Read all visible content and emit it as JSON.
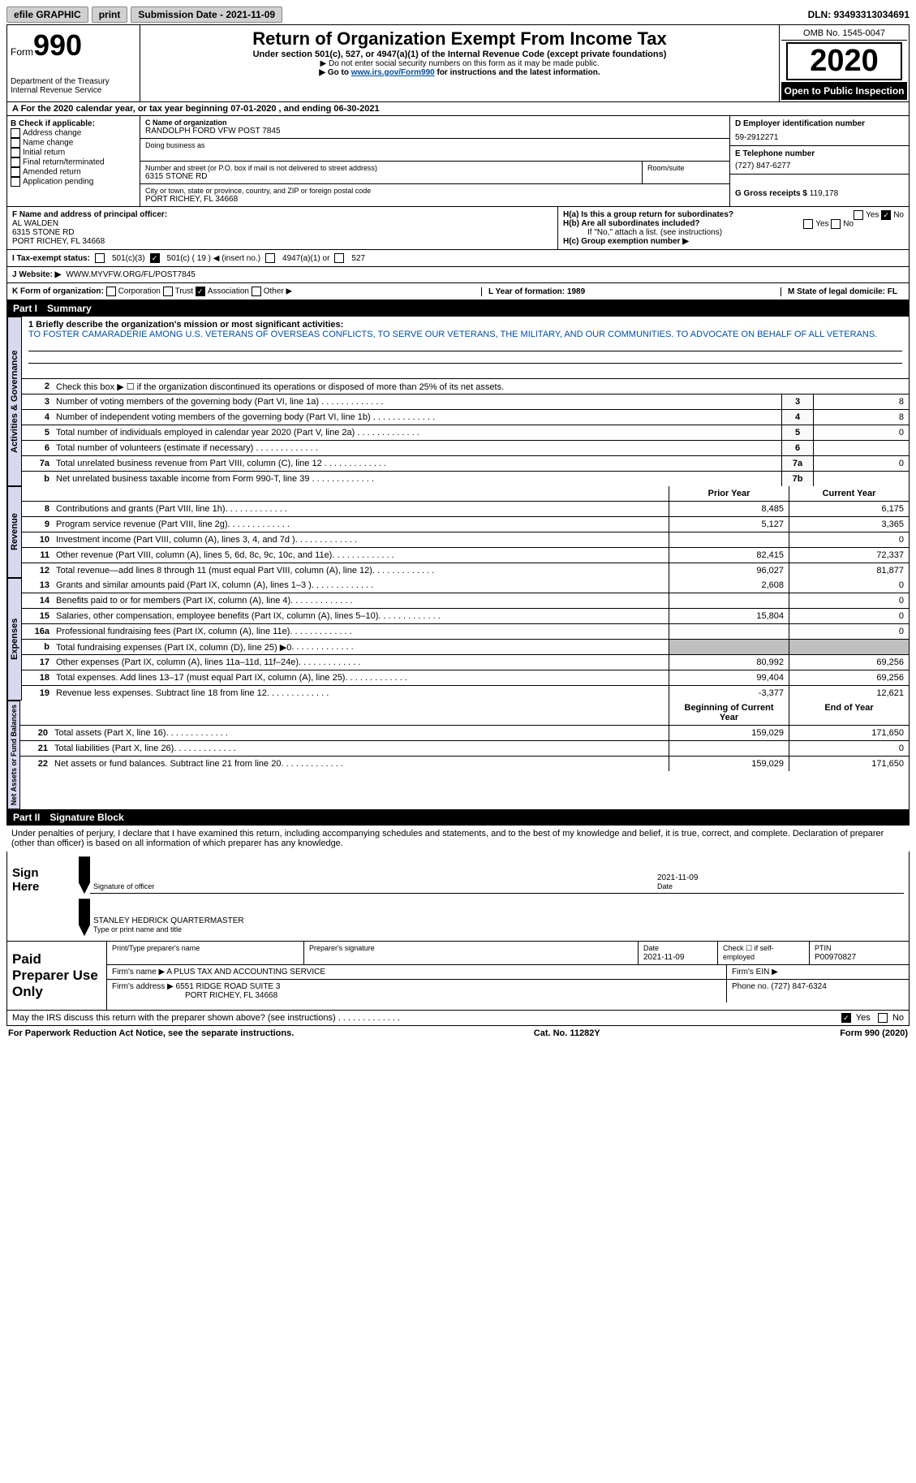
{
  "topbar": {
    "efile": "efile GRAPHIC",
    "print": "print",
    "subdate_label": "Submission Date - 2021-11-09",
    "dln": "DLN: 93493313034691"
  },
  "header": {
    "form_word": "Form",
    "form_num": "990",
    "dept1": "Department of the Treasury",
    "dept2": "Internal Revenue Service",
    "title": "Return of Organization Exempt From Income Tax",
    "subtitle": "Under section 501(c), 527, or 4947(a)(1) of the Internal Revenue Code (except private foundations)",
    "note1": "▶ Do not enter social security numbers on this form as it may be made public.",
    "note2_pre": "▶ Go to ",
    "note2_link": "www.irs.gov/Form990",
    "note2_post": " for instructions and the latest information.",
    "omb": "OMB No. 1545-0047",
    "year": "2020",
    "open": "Open to Public Inspection"
  },
  "section_a": "A For the 2020 calendar year, or tax year beginning 07-01-2020   , and ending 06-30-2021",
  "col_b": {
    "header": "B Check if applicable:",
    "opts": [
      "Address change",
      "Name change",
      "Initial return",
      "Final return/terminated",
      "Amended return",
      "Application pending"
    ]
  },
  "org": {
    "c_label": "C Name of organization",
    "c_name": "RANDOLPH FORD VFW POST 7845",
    "dba_label": "Doing business as",
    "addr_label": "Number and street (or P.O. box if mail is not delivered to street address)",
    "addr": "6315 STONE RD",
    "room_label": "Room/suite",
    "city_label": "City or town, state or province, country, and ZIP or foreign postal code",
    "city": "PORT RICHEY, FL  34668"
  },
  "right": {
    "d_label": "D Employer identification number",
    "d_val": "59-2912271",
    "e_label": "E Telephone number",
    "e_val": "(727) 847-6277",
    "g_label": "G Gross receipts $",
    "g_val": "119,178"
  },
  "f": {
    "label": "F Name and address of principal officer:",
    "name": "AL WALDEN",
    "addr1": "6315 STONE RD",
    "addr2": "PORT RICHEY, FL  34668"
  },
  "h": {
    "ha_label": "H(a)  Is this a group return for subordinates?",
    "yes": "Yes",
    "no": "No",
    "hb_label": "H(b)  Are all subordinates included?",
    "hb_note": "If \"No,\" attach a list. (see instructions)",
    "hc_label": "H(c)  Group exemption number ▶"
  },
  "i": {
    "label": "I   Tax-exempt status:",
    "o1": "501(c)(3)",
    "o2": "501(c) ( 19 ) ◀ (insert no.)",
    "o3": "4947(a)(1) or",
    "o4": "527"
  },
  "j": {
    "label": "J   Website: ▶",
    "val": "WWW.MYVFW.ORG/FL/POST7845"
  },
  "k": {
    "label": "K Form of organization:",
    "o1": "Corporation",
    "o2": "Trust",
    "o3": "Association",
    "o4": "Other ▶",
    "l_label": "L Year of formation: 1989",
    "m_label": "M State of legal domicile: FL"
  },
  "part1": {
    "label": "Part I",
    "title": "Summary"
  },
  "mission": {
    "q": "1  Briefly describe the organization's mission or most significant activities:",
    "text": "TO FOSTER CAMARADERIE AMONG U.S. VETERANS OF OVERSEAS CONFLICTS, TO SERVE OUR VETERANS, THE MILITARY, AND OUR COMMUNITIES. TO ADVOCATE ON BEHALF OF ALL VETERANS."
  },
  "vert": {
    "gov": "Activities & Governance",
    "rev": "Revenue",
    "exp": "Expenses",
    "net": "Net Assets or Fund Balances"
  },
  "gov_lines": {
    "l2": "Check this box ▶ ☐ if the organization discontinued its operations or disposed of more than 25% of its net assets.",
    "l3": {
      "t": "Number of voting members of the governing body (Part VI, line 1a)",
      "n": "3",
      "v": "8"
    },
    "l4": {
      "t": "Number of independent voting members of the governing body (Part VI, line 1b)",
      "n": "4",
      "v": "8"
    },
    "l5": {
      "t": "Total number of individuals employed in calendar year 2020 (Part V, line 2a)",
      "n": "5",
      "v": "0"
    },
    "l6": {
      "t": "Total number of volunteers (estimate if necessary)",
      "n": "6",
      "v": ""
    },
    "l7a": {
      "t": "Total unrelated business revenue from Part VIII, column (C), line 12",
      "n": "7a",
      "v": "0"
    },
    "l7b": {
      "t": "Net unrelated business taxable income from Form 990-T, line 39",
      "n": "7b",
      "v": ""
    }
  },
  "cols": {
    "prior": "Prior Year",
    "curr": "Current Year",
    "beg": "Beginning of Current Year",
    "end": "End of Year"
  },
  "rev": [
    {
      "n": "8",
      "t": "Contributions and grants (Part VIII, line 1h)",
      "p": "8,485",
      "c": "6,175"
    },
    {
      "n": "9",
      "t": "Program service revenue (Part VIII, line 2g)",
      "p": "5,127",
      "c": "3,365"
    },
    {
      "n": "10",
      "t": "Investment income (Part VIII, column (A), lines 3, 4, and 7d )",
      "p": "",
      "c": "0"
    },
    {
      "n": "11",
      "t": "Other revenue (Part VIII, column (A), lines 5, 6d, 8c, 9c, 10c, and 11e)",
      "p": "82,415",
      "c": "72,337"
    },
    {
      "n": "12",
      "t": "Total revenue—add lines 8 through 11 (must equal Part VIII, column (A), line 12)",
      "p": "96,027",
      "c": "81,877"
    }
  ],
  "exp": [
    {
      "n": "13",
      "t": "Grants and similar amounts paid (Part IX, column (A), lines 1–3 )",
      "p": "2,608",
      "c": "0"
    },
    {
      "n": "14",
      "t": "Benefits paid to or for members (Part IX, column (A), line 4)",
      "p": "",
      "c": "0"
    },
    {
      "n": "15",
      "t": "Salaries, other compensation, employee benefits (Part IX, column (A), lines 5–10)",
      "p": "15,804",
      "c": "0"
    },
    {
      "n": "16a",
      "t": "Professional fundraising fees (Part IX, column (A), line 11e)",
      "p": "",
      "c": "0"
    },
    {
      "n": "b",
      "t": "Total fundraising expenses (Part IX, column (D), line 25) ▶0",
      "p": "GREY",
      "c": "GREY"
    },
    {
      "n": "17",
      "t": "Other expenses (Part IX, column (A), lines 11a–11d, 11f–24e)",
      "p": "80,992",
      "c": "69,256"
    },
    {
      "n": "18",
      "t": "Total expenses. Add lines 13–17 (must equal Part IX, column (A), line 25)",
      "p": "99,404",
      "c": "69,256"
    },
    {
      "n": "19",
      "t": "Revenue less expenses. Subtract line 18 from line 12",
      "p": "-3,377",
      "c": "12,621"
    }
  ],
  "net": [
    {
      "n": "20",
      "t": "Total assets (Part X, line 16)",
      "p": "159,029",
      "c": "171,650"
    },
    {
      "n": "21",
      "t": "Total liabilities (Part X, line 26)",
      "p": "",
      "c": "0"
    },
    {
      "n": "22",
      "t": "Net assets or fund balances. Subtract line 21 from line 20",
      "p": "159,029",
      "c": "171,650"
    }
  ],
  "part2": {
    "label": "Part II",
    "title": "Signature Block"
  },
  "sig": {
    "decl": "Under penalties of perjury, I declare that I have examined this return, including accompanying schedules and statements, and to the best of my knowledge and belief, it is true, correct, and complete. Declaration of preparer (other than officer) is based on all information of which preparer has any knowledge.",
    "sign_here": "Sign Here",
    "sig_of_officer": "Signature of officer",
    "date": "Date",
    "date_val": "2021-11-09",
    "name": "STANLEY HEDRICK QUARTERMASTER",
    "name_label": "Type or print name and title"
  },
  "prep": {
    "label": "Paid Preparer Use Only",
    "h1": "Print/Type preparer's name",
    "h2": "Preparer's signature",
    "h3_label": "Date",
    "h3": "2021-11-09",
    "h4": "Check ☐ if self-employed",
    "h5_label": "PTIN",
    "h5": "P00970827",
    "firm_name_label": "Firm's name    ▶",
    "firm_name": "A PLUS TAX AND ACCOUNTING SERVICE",
    "firm_ein_label": "Firm's EIN ▶",
    "firm_addr_label": "Firm's address ▶",
    "firm_addr1": "6551 RIDGE ROAD SUITE 3",
    "firm_addr2": "PORT RICHEY, FL  34668",
    "phone_label": "Phone no.",
    "phone": "(727) 847-6324"
  },
  "footer": {
    "discuss": "May the IRS discuss this return with the preparer shown above? (see instructions)",
    "yes": "Yes",
    "no": "No",
    "pra": "For Paperwork Reduction Act Notice, see the separate instructions.",
    "cat": "Cat. No. 11282Y",
    "form": "Form 990 (2020)"
  }
}
